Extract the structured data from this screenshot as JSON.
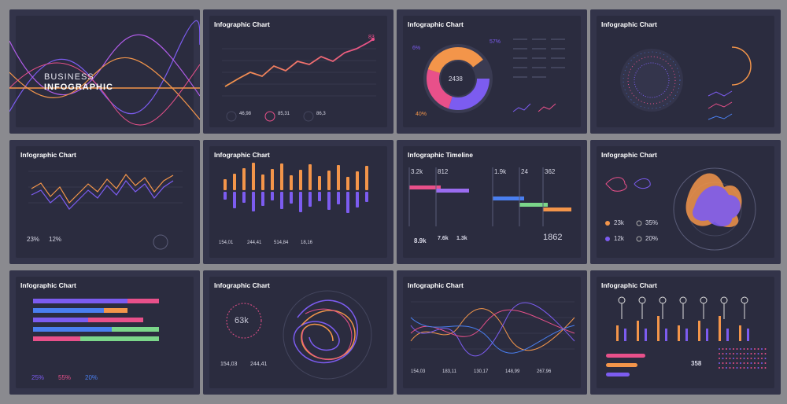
{
  "panel_title": "Infographic Chart",
  "cover": {
    "line1": "BUSINESS",
    "line2": "INFOGRAPHIC"
  },
  "line_chart": {
    "peak": "83",
    "stats": [
      "46,98",
      "85,31",
      "86,3"
    ]
  },
  "donut": {
    "center": "2438",
    "pct_left": "6%",
    "pct_right": "57%",
    "pct_bottom": "40%"
  },
  "candles": {
    "stats": [
      "23%",
      "12%"
    ]
  },
  "bars": {
    "stats": [
      "154,01",
      "244,41",
      "514,84",
      "18,16"
    ]
  },
  "timeline": {
    "title": "Infographic Timeline",
    "top": [
      "3.2k",
      "812",
      "1.9k",
      "24",
      "362"
    ],
    "bottom": [
      "8.9k",
      "7.6k",
      "1.3k"
    ],
    "big": "1862"
  },
  "radar": {
    "stats": [
      "23k",
      "35%",
      "12k",
      "20%"
    ]
  },
  "hbars": {
    "pcts": [
      "25%",
      "55%",
      "20%"
    ]
  },
  "swirl": {
    "center": "63k",
    "stats": [
      "154,03",
      "244,41"
    ]
  },
  "waves": {
    "stats": [
      "154,03",
      "183,11",
      "130,17",
      "148,99",
      "267,96"
    ]
  },
  "lollipop": {
    "big": "358"
  },
  "colors": {
    "bg": "#2b2c3f",
    "panel": "#33344a",
    "orange": "#f3954a",
    "purple": "#7c5cf0",
    "pink": "#e8508a",
    "blue": "#4a7ff0",
    "green": "#7bd68a"
  }
}
